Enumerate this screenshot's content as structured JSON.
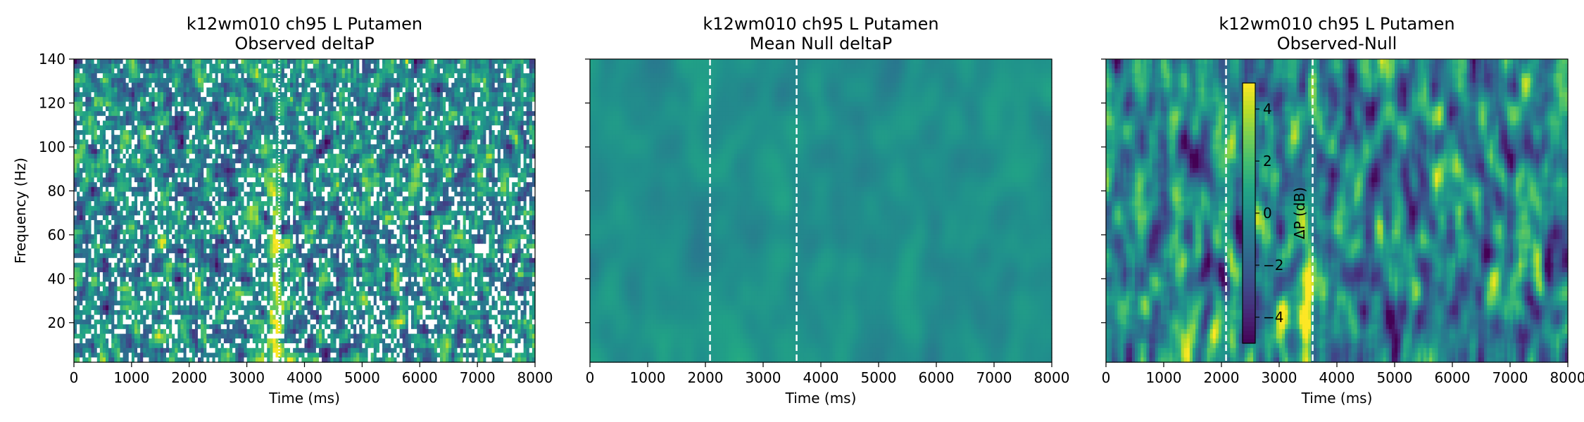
{
  "chart_data": [
    {
      "type": "heatmap",
      "title": "k12wm010 ch95 L Putamen",
      "subtitle": "Observed deltaP",
      "xlabel": "Time (ms)",
      "ylabel": "Frequency (Hz)",
      "xlim": [
        0,
        8000
      ],
      "ylim": [
        2,
        140
      ],
      "xticks": [
        0,
        1000,
        2000,
        3000,
        4000,
        5000,
        6000,
        7000,
        8000
      ],
      "yticks": [
        20,
        40,
        60,
        80,
        100,
        120,
        140
      ],
      "colormap": "viridis",
      "masked_color": "#ffffff",
      "event_lines_ms": [
        3560
      ],
      "event_line_style": "dotted-white"
    },
    {
      "type": "heatmap",
      "title": "k12wm010 ch95 L Putamen",
      "subtitle": "Mean Null deltaP",
      "xlabel": "Time (ms)",
      "ylabel": "",
      "xlim": [
        0,
        8000
      ],
      "ylim": [
        2,
        140
      ],
      "xticks": [
        0,
        1000,
        2000,
        3000,
        4000,
        5000,
        6000,
        7000,
        8000
      ],
      "yticks": [
        20,
        40,
        60,
        80,
        100,
        120,
        140
      ],
      "colormap": "viridis",
      "event_lines_ms": [
        2080,
        3580
      ],
      "event_line_style": "dashed-white"
    },
    {
      "type": "heatmap",
      "title": "k12wm010 ch95 L Putamen",
      "subtitle": "Observed-Null",
      "xlabel": "Time (ms)",
      "ylabel": "",
      "xlim": [
        0,
        8000
      ],
      "ylim": [
        2,
        140
      ],
      "xticks": [
        0,
        1000,
        2000,
        3000,
        4000,
        5000,
        6000,
        7000,
        8000
      ],
      "yticks": [
        20,
        40,
        60,
        80,
        100,
        120,
        140
      ],
      "colormap": "viridis",
      "event_lines_ms": [
        2080,
        3580
      ],
      "event_line_style": "dashed-white",
      "colorbar": {
        "label": "ΔP (dB)",
        "range": [
          -5,
          5
        ],
        "ticks": [
          -4,
          -2,
          0,
          2,
          4
        ],
        "tick_labels": [
          "−4",
          "−2",
          "0",
          "2",
          "4"
        ]
      }
    }
  ]
}
